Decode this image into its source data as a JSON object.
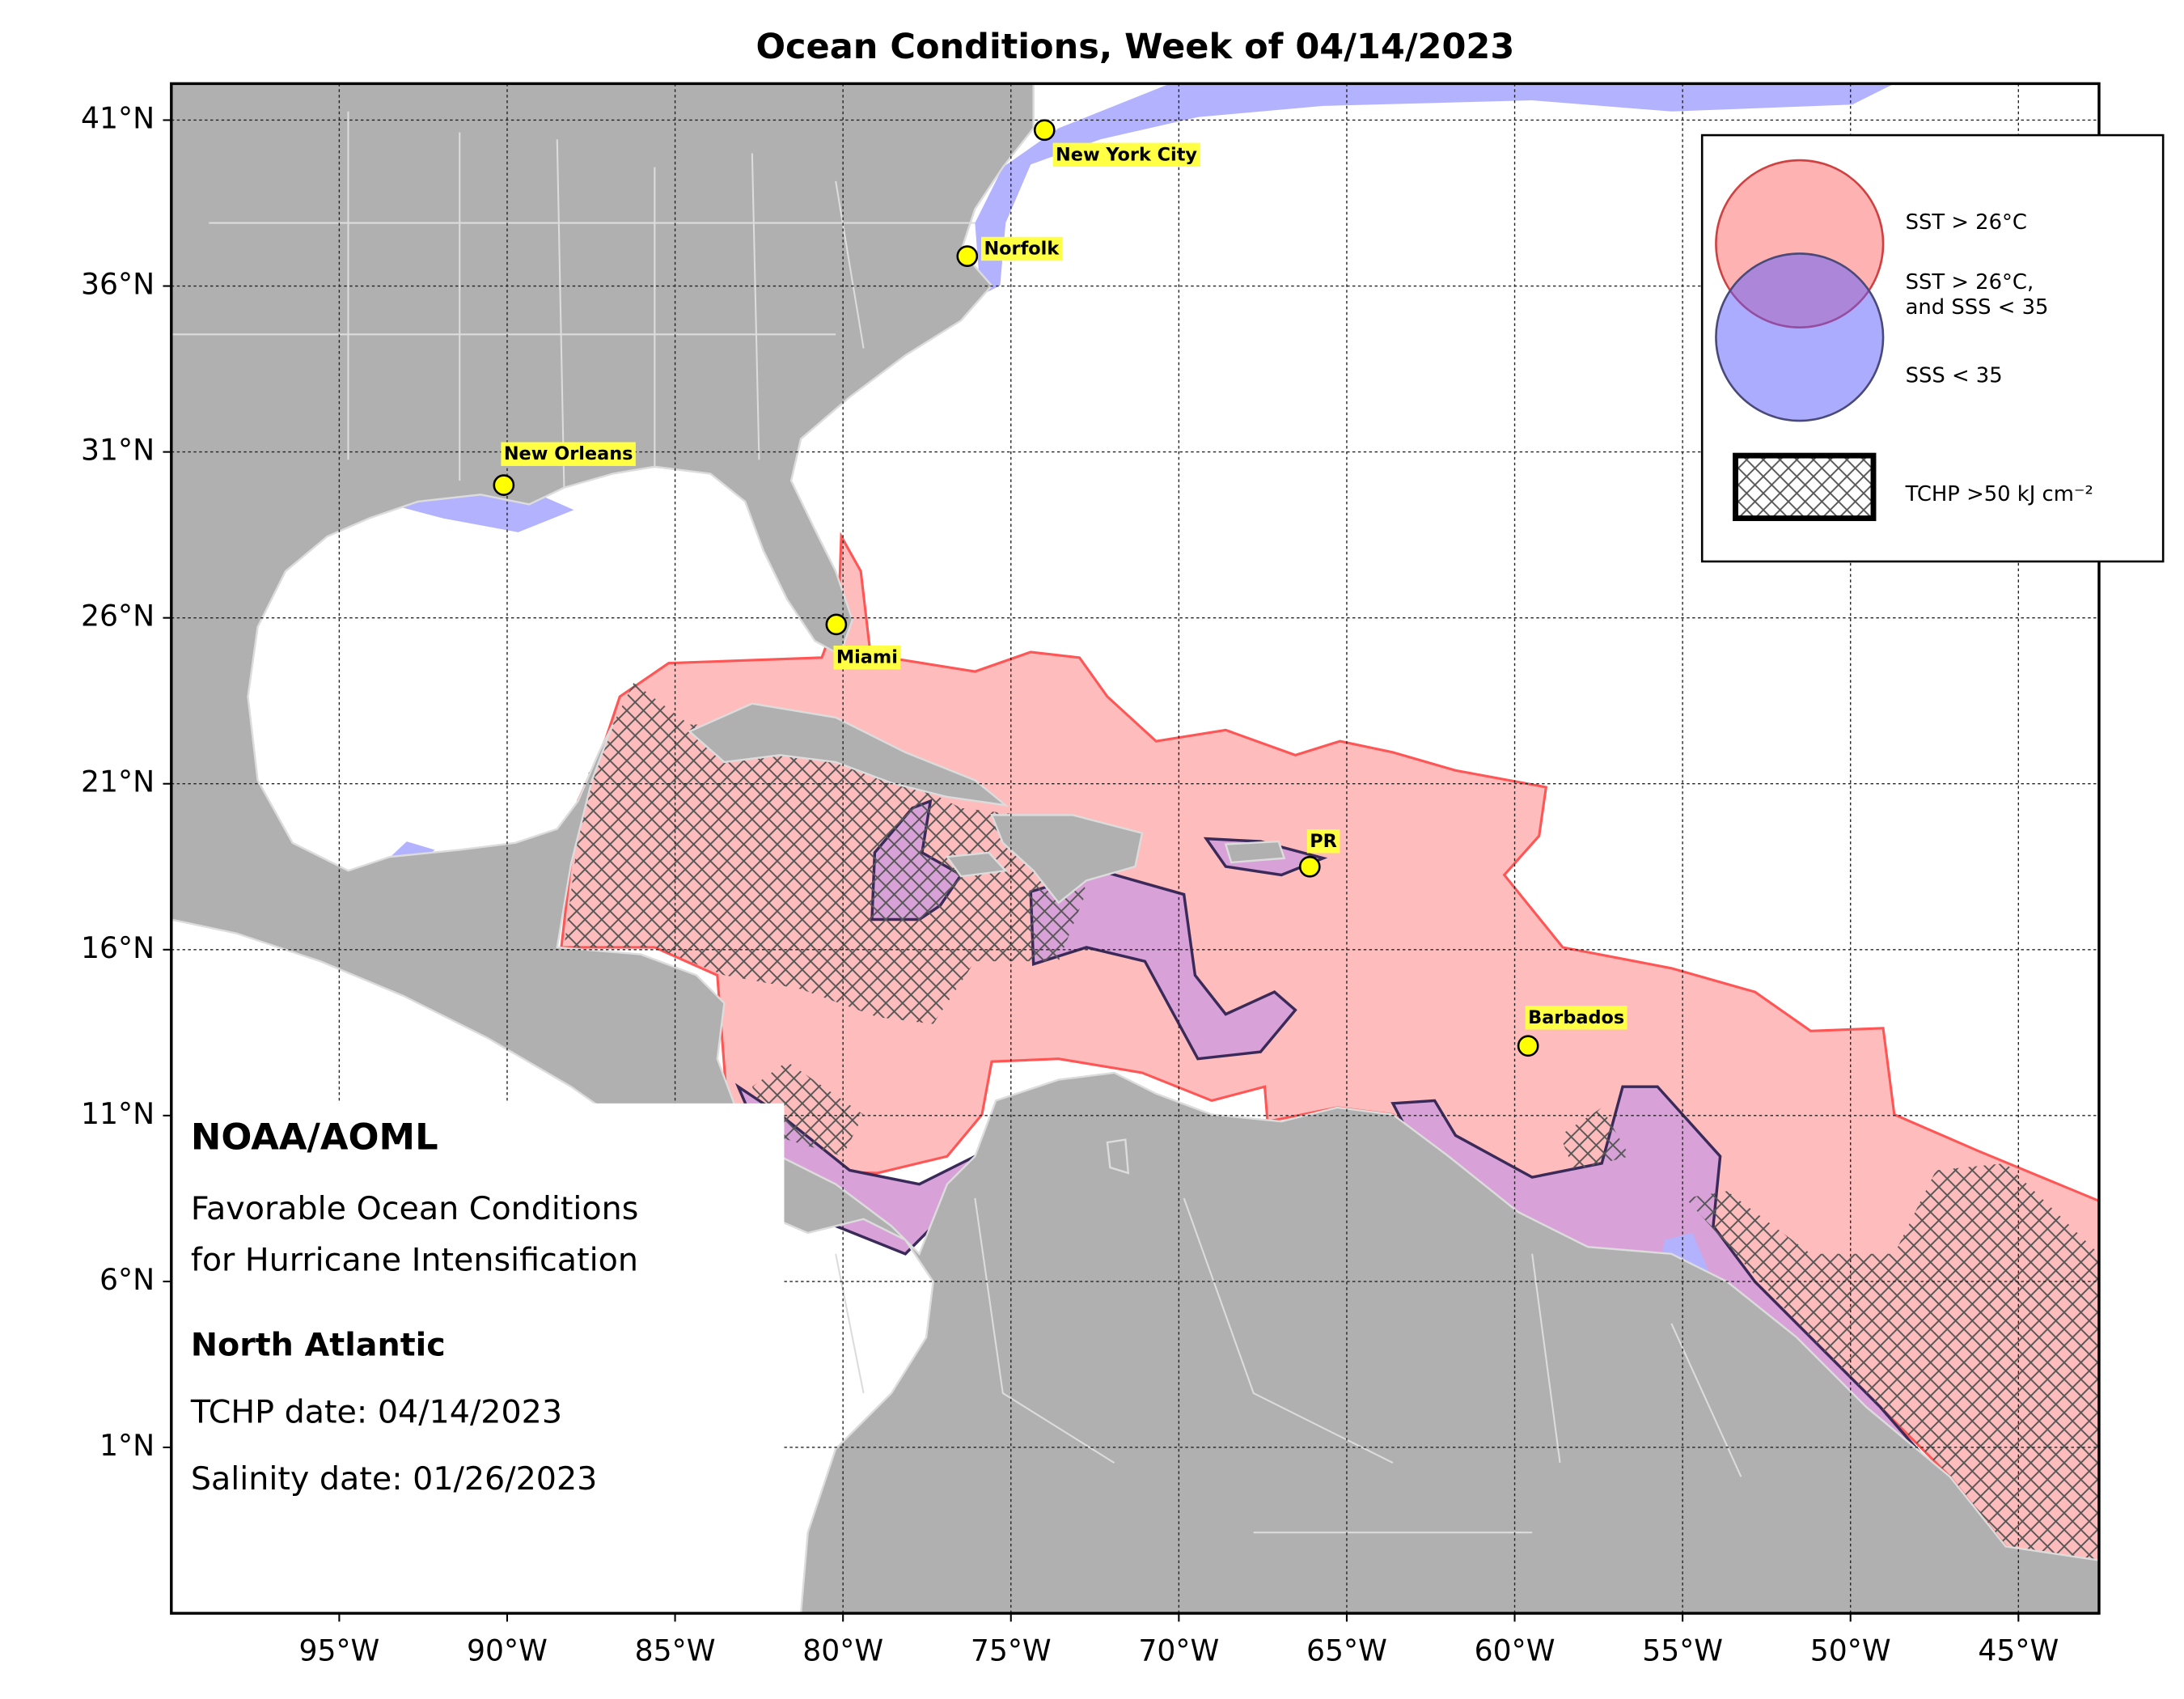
{
  "chart_data": {
    "type": "map",
    "title": "Ocean Conditions, Week of 04/14/2023",
    "xlim": [
      -100,
      -42.6
    ],
    "ylim": [
      -4,
      42.1
    ],
    "xticks": [
      {
        "value": -95,
        "label": "95°W"
      },
      {
        "value": -90,
        "label": "90°W"
      },
      {
        "value": -85,
        "label": "85°W"
      },
      {
        "value": -80,
        "label": "80°W"
      },
      {
        "value": -75,
        "label": "75°W"
      },
      {
        "value": -70,
        "label": "70°W"
      },
      {
        "value": -65,
        "label": "65°W"
      },
      {
        "value": -60,
        "label": "60°W"
      },
      {
        "value": -55,
        "label": "55°W"
      },
      {
        "value": -50,
        "label": "50°W"
      },
      {
        "value": -45,
        "label": "45°W"
      }
    ],
    "yticks": [
      {
        "value": 41,
        "label": "41°N"
      },
      {
        "value": 36,
        "label": "36°N"
      },
      {
        "value": 31,
        "label": "31°N"
      },
      {
        "value": 26,
        "label": "26°N"
      },
      {
        "value": 21,
        "label": "21°N"
      },
      {
        "value": 16,
        "label": "16°N"
      },
      {
        "value": 11,
        "label": "11°N"
      },
      {
        "value": 6,
        "label": "6°N"
      },
      {
        "value": 1,
        "label": "1°N"
      }
    ],
    "grid": true,
    "cities": [
      {
        "name": "New York City",
        "lon": -74,
        "lat": 40.7
      },
      {
        "name": "Norfolk",
        "lon": -76.3,
        "lat": 36.9
      },
      {
        "name": "New Orleans",
        "lon": -90.1,
        "lat": 30.0
      },
      {
        "name": "Miami",
        "lon": -80.2,
        "lat": 25.8
      },
      {
        "name": "PR",
        "lon": -66.1,
        "lat": 18.5
      },
      {
        "name": "Barbados",
        "lon": -59.6,
        "lat": 13.1
      }
    ],
    "layers": {
      "sst": {
        "label": "SST > 26°C",
        "color": "#ffbcbc"
      },
      "both": {
        "label": [
          "SST > 26°C,",
          "and SSS < 35"
        ],
        "color": "#d8a2d8"
      },
      "sss": {
        "label": "SSS < 35",
        "color": "#b2b2ff"
      },
      "tchp": {
        "label": "TCHP >50 kJ cm⁻²"
      }
    },
    "annotations": {
      "org": "NOAA/AOML",
      "subtitle": [
        "Favorable Ocean Conditions",
        "for Hurricane Intensification"
      ],
      "region": "North Atlantic",
      "tchp_date": "TCHP date: 04/14/2023",
      "salinity_date": "Salinity date: 01/26/2023"
    }
  }
}
